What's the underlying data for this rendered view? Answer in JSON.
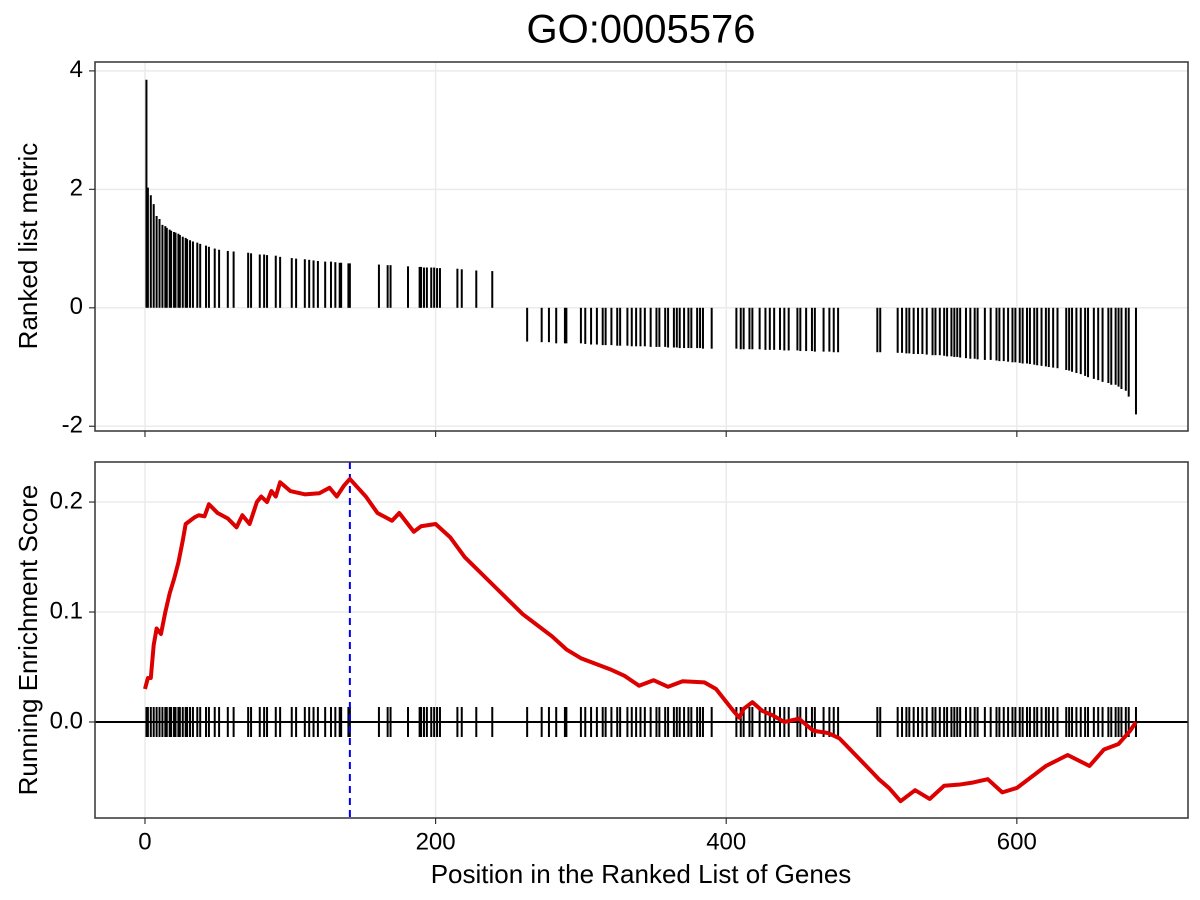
{
  "chart_data": [
    {
      "type": "bar",
      "title": "GO:0005576",
      "ylabel": "Ranked list metric",
      "color": "#000000",
      "xlim": [
        -34.4,
        717.8
      ],
      "xticks": [
        0,
        200,
        400,
        600
      ],
      "ylim": [
        -2.08,
        4.15
      ],
      "yticks": [
        -2,
        0,
        2,
        4
      ],
      "grid": true,
      "x": [
        1,
        2,
        4,
        6,
        8,
        10,
        12,
        14,
        15,
        17,
        18,
        20,
        21,
        23,
        24,
        26,
        28,
        29,
        31,
        33,
        36,
        38,
        42,
        44,
        48,
        51,
        57,
        61,
        71,
        73,
        79,
        82,
        84,
        90,
        93,
        101,
        104,
        110,
        113,
        116,
        119,
        124,
        128,
        131,
        134,
        135,
        140,
        141,
        161,
        167,
        169,
        181,
        189,
        190,
        192,
        194,
        197,
        199,
        201,
        203,
        215,
        218,
        228,
        239,
        263,
        273,
        278,
        283,
        289,
        290,
        300,
        303,
        307,
        311,
        315,
        317,
        321,
        325,
        327,
        332,
        335,
        338,
        341,
        344,
        348,
        352,
        354,
        358,
        360,
        364,
        366,
        368,
        371,
        374,
        376,
        380,
        382,
        384,
        390,
        407,
        410,
        412,
        416,
        418,
        423,
        427,
        430,
        433,
        437,
        440,
        443,
        449,
        451,
        455,
        459,
        461,
        467,
        471,
        474,
        477,
        504,
        506,
        518,
        521,
        524,
        526,
        529,
        532,
        535,
        538,
        542,
        544,
        547,
        550,
        552,
        555,
        557,
        559,
        561,
        565,
        568,
        571,
        573,
        578,
        582,
        586,
        588,
        591,
        594,
        597,
        599,
        602,
        604,
        607,
        609,
        612,
        614,
        617,
        620,
        622,
        625,
        628,
        634,
        636,
        638,
        641,
        644,
        647,
        649,
        653,
        656,
        659,
        663,
        665,
        668,
        670,
        672,
        675,
        677,
        682
      ],
      "values": [
        3.85,
        2.03,
        1.9,
        1.75,
        1.55,
        1.5,
        1.4,
        1.38,
        1.35,
        1.32,
        1.3,
        1.28,
        1.27,
        1.25,
        1.23,
        1.2,
        1.18,
        1.16,
        1.14,
        1.12,
        1.1,
        1.08,
        1.05,
        1.03,
        1.0,
        0.98,
        0.96,
        0.95,
        0.93,
        0.92,
        0.9,
        0.9,
        0.89,
        0.88,
        0.86,
        0.84,
        0.83,
        0.82,
        0.81,
        0.8,
        0.79,
        0.78,
        0.78,
        0.77,
        0.76,
        0.76,
        0.75,
        0.75,
        0.73,
        0.72,
        0.72,
        0.7,
        0.69,
        0.69,
        0.68,
        0.68,
        0.68,
        0.68,
        0.67,
        0.67,
        0.66,
        0.65,
        0.63,
        0.62,
        -0.57,
        -0.58,
        -0.58,
        -0.6,
        -0.6,
        -0.6,
        -0.6,
        -0.61,
        -0.62,
        -0.62,
        -0.63,
        -0.63,
        -0.63,
        -0.64,
        -0.64,
        -0.64,
        -0.65,
        -0.65,
        -0.65,
        -0.65,
        -0.66,
        -0.66,
        -0.66,
        -0.66,
        -0.67,
        -0.67,
        -0.67,
        -0.68,
        -0.68,
        -0.68,
        -0.68,
        -0.68,
        -0.68,
        -0.69,
        -0.69,
        -0.69,
        -0.7,
        -0.7,
        -0.7,
        -0.7,
        -0.7,
        -0.71,
        -0.71,
        -0.71,
        -0.71,
        -0.72,
        -0.72,
        -0.72,
        -0.73,
        -0.73,
        -0.73,
        -0.74,
        -0.74,
        -0.74,
        -0.75,
        -0.75,
        -0.75,
        -0.75,
        -0.76,
        -0.76,
        -0.77,
        -0.77,
        -0.78,
        -0.78,
        -0.78,
        -0.79,
        -0.8,
        -0.8,
        -0.8,
        -0.81,
        -0.82,
        -0.82,
        -0.83,
        -0.83,
        -0.84,
        -0.85,
        -0.86,
        -0.86,
        -0.87,
        -0.88,
        -0.88,
        -0.89,
        -0.9,
        -0.9,
        -0.91,
        -0.92,
        -0.92,
        -0.93,
        -0.94,
        -0.94,
        -0.95,
        -0.96,
        -0.97,
        -0.98,
        -0.99,
        -1.0,
        -1.01,
        -1.02,
        -1.05,
        -1.06,
        -1.08,
        -1.1,
        -1.12,
        -1.15,
        -1.17,
        -1.2,
        -1.22,
        -1.25,
        -1.27,
        -1.3,
        -1.3,
        -1.33,
        -1.37,
        -1.4,
        -1.5,
        -1.8
      ]
    },
    {
      "type": "line",
      "ylabel": "Running Enrichment Score",
      "xlabel": "Position in the Ranked List of Genes",
      "color": "#dd0000",
      "xlim": [
        -34.4,
        717.8
      ],
      "xticks": [
        0,
        200,
        400,
        600
      ],
      "ylim": [
        -0.0873,
        0.2364
      ],
      "yticks": [
        {
          "value": 0,
          "label": "0.0"
        },
        0.1,
        0.2
      ],
      "grid": true,
      "vline": {
        "x": 141,
        "color": "#0000ee"
      },
      "x": [
        0,
        2,
        4,
        6,
        8,
        11,
        14,
        17,
        20,
        23,
        26,
        28,
        31,
        34,
        37,
        41,
        44,
        50,
        57,
        63,
        67,
        72,
        77,
        80,
        84,
        87,
        90,
        93,
        100,
        110,
        120,
        127,
        132,
        137,
        141,
        152,
        160,
        170,
        175,
        185,
        190,
        200,
        210,
        220,
        240,
        260,
        268,
        280,
        290,
        300,
        310,
        320,
        330,
        340,
        350,
        360,
        370,
        385,
        393,
        405,
        409,
        412,
        418,
        425,
        432,
        440,
        450,
        460,
        470,
        478,
        500,
        505,
        512,
        520,
        530,
        540,
        550,
        560,
        570,
        580,
        590,
        600,
        610,
        620,
        635,
        650,
        660,
        670,
        678,
        682
      ],
      "values": [
        0.03,
        0.04,
        0.04,
        0.07,
        0.085,
        0.08,
        0.1,
        0.117,
        0.13,
        0.145,
        0.165,
        0.18,
        0.183,
        0.186,
        0.188,
        0.187,
        0.198,
        0.19,
        0.185,
        0.177,
        0.188,
        0.18,
        0.2,
        0.205,
        0.2,
        0.21,
        0.205,
        0.218,
        0.21,
        0.207,
        0.208,
        0.213,
        0.205,
        0.215,
        0.221,
        0.205,
        0.19,
        0.183,
        0.19,
        0.173,
        0.178,
        0.18,
        0.168,
        0.15,
        0.124,
        0.098,
        0.09,
        0.078,
        0.066,
        0.058,
        0.053,
        0.048,
        0.042,
        0.033,
        0.038,
        0.032,
        0.037,
        0.036,
        0.03,
        0.01,
        0.004,
        0.012,
        0.018,
        0.01,
        0.006,
        0.0,
        0.003,
        -0.008,
        -0.01,
        -0.015,
        -0.045,
        -0.052,
        -0.06,
        -0.072,
        -0.062,
        -0.07,
        -0.058,
        -0.057,
        -0.055,
        -0.052,
        -0.064,
        -0.06,
        -0.05,
        -0.04,
        -0.03,
        -0.04,
        -0.025,
        -0.02,
        -0.008,
        0.0
      ]
    }
  ]
}
